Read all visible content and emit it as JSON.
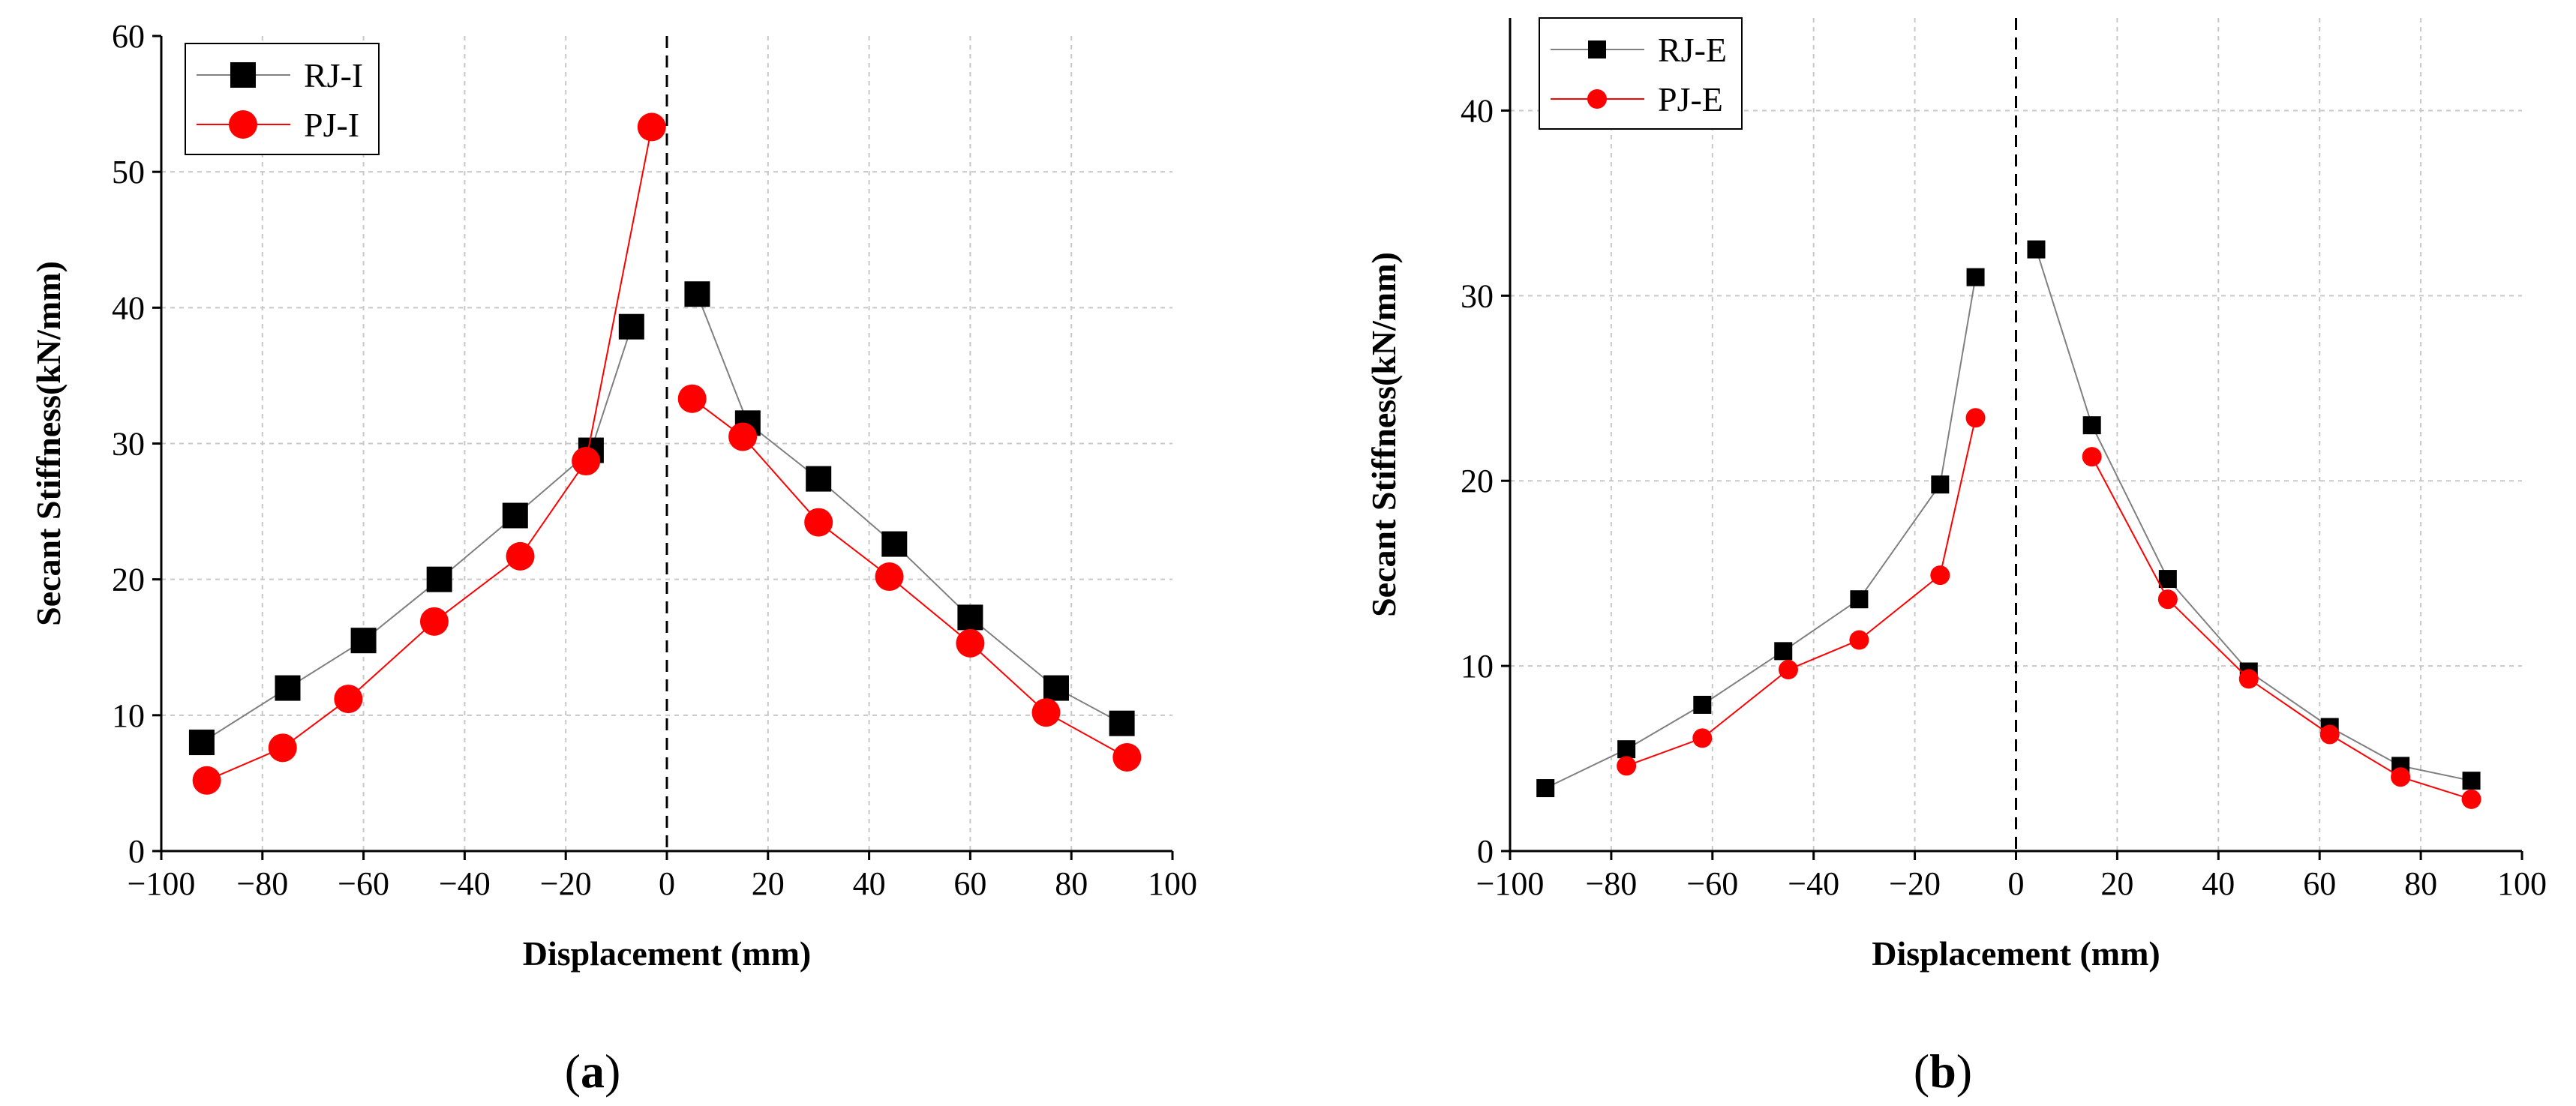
{
  "chart_data": [
    {
      "type": "line",
      "caption_prefix": "(",
      "caption_letter": "a",
      "caption_suffix": ")",
      "xlabel": "Displacement (mm)",
      "ylabel": "Secant Stiffness(kN/mm)",
      "xlim": [
        -100,
        100
      ],
      "ylim": [
        0,
        60
      ],
      "xticks": [
        -100,
        -80,
        -60,
        -40,
        -20,
        0,
        20,
        40,
        60,
        80,
        100
      ],
      "xtick_labels": [
        "−100",
        "−80",
        "−60",
        "−40",
        "−20",
        "0",
        "20",
        "40",
        "60",
        "80",
        "100"
      ],
      "yticks": [
        0,
        10,
        20,
        30,
        40,
        50,
        60
      ],
      "ytick_labels": [
        "0",
        "10",
        "20",
        "30",
        "40",
        "50",
        "60"
      ],
      "grid": true,
      "zero_line": "dashed",
      "legend_position": "top-left",
      "series": [
        {
          "name": "RJ-I",
          "marker": "square",
          "marker_color": "#000000",
          "line_color": "#808080",
          "negative": [
            [
              -92,
              8.0
            ],
            [
              -75,
              12.0
            ],
            [
              -60,
              15.5
            ],
            [
              -45,
              20.0
            ],
            [
              -30,
              24.7
            ],
            [
              -15,
              29.5
            ],
            [
              -7,
              38.6
            ]
          ],
          "positive": [
            [
              6,
              41.0
            ],
            [
              16,
              31.5
            ],
            [
              30,
              27.4
            ],
            [
              45,
              22.6
            ],
            [
              60,
              17.2
            ],
            [
              77,
              12.0
            ],
            [
              90,
              9.4
            ]
          ]
        },
        {
          "name": "PJ-I",
          "marker": "circle",
          "marker_color": "#ff0000",
          "line_color": "#ff0000",
          "negative": [
            [
              -91,
              5.2
            ],
            [
              -76,
              7.6
            ],
            [
              -63,
              11.2
            ],
            [
              -46,
              16.9
            ],
            [
              -29,
              21.7
            ],
            [
              -16,
              28.7
            ],
            [
              -3,
              53.3
            ]
          ],
          "positive": [
            [
              5,
              33.3
            ],
            [
              15,
              30.5
            ],
            [
              30,
              24.2
            ],
            [
              44,
              20.2
            ],
            [
              60,
              15.3
            ],
            [
              75,
              10.2
            ],
            [
              91,
              6.9
            ]
          ]
        }
      ]
    },
    {
      "type": "line",
      "caption_prefix": "(",
      "caption_letter": "b",
      "caption_suffix": ")",
      "xlabel": "Displacement (mm)",
      "ylabel": "Secant Stiffness(kN/mm)",
      "xlim": [
        -100,
        100
      ],
      "ylim": [
        0,
        45
      ],
      "xticks": [
        -100,
        -80,
        -60,
        -40,
        -20,
        0,
        20,
        40,
        60,
        80,
        100
      ],
      "xtick_labels": [
        "−100",
        "−80",
        "−60",
        "−40",
        "−20",
        "0",
        "20",
        "40",
        "60",
        "80",
        "100"
      ],
      "yticks": [
        0,
        10,
        20,
        30,
        40
      ],
      "ytick_labels": [
        "0",
        "10",
        "20",
        "30",
        "40"
      ],
      "grid": true,
      "zero_line": "dashed",
      "legend_position": "top-left",
      "series": [
        {
          "name": "RJ-E",
          "marker": "square",
          "marker_color": "#000000",
          "line_color": "#808080",
          "negative": [
            [
              -93,
              3.4
            ],
            [
              -77,
              5.5
            ],
            [
              -62,
              7.9
            ],
            [
              -46,
              10.8
            ],
            [
              -31,
              13.6
            ],
            [
              -15,
              19.8
            ],
            [
              -8,
              31.0
            ]
          ],
          "positive": [
            [
              4,
              32.5
            ],
            [
              15,
              23.0
            ],
            [
              30,
              14.7
            ],
            [
              46,
              9.7
            ],
            [
              62,
              6.7
            ],
            [
              76,
              4.6
            ],
            [
              90,
              3.8
            ]
          ]
        },
        {
          "name": "PJ-E",
          "marker": "circle",
          "marker_color": "#ff0000",
          "line_color": "#ff0000",
          "negative": [
            [
              -77,
              4.6
            ],
            [
              -62,
              6.1
            ],
            [
              -45,
              9.8
            ],
            [
              -31,
              11.4
            ],
            [
              -15,
              14.9
            ],
            [
              -8,
              23.4
            ]
          ],
          "positive": [
            [
              15,
              21.3
            ],
            [
              30,
              13.6
            ],
            [
              46,
              9.3
            ],
            [
              62,
              6.3
            ],
            [
              76,
              4.0
            ],
            [
              90,
              2.8
            ]
          ]
        }
      ]
    }
  ]
}
